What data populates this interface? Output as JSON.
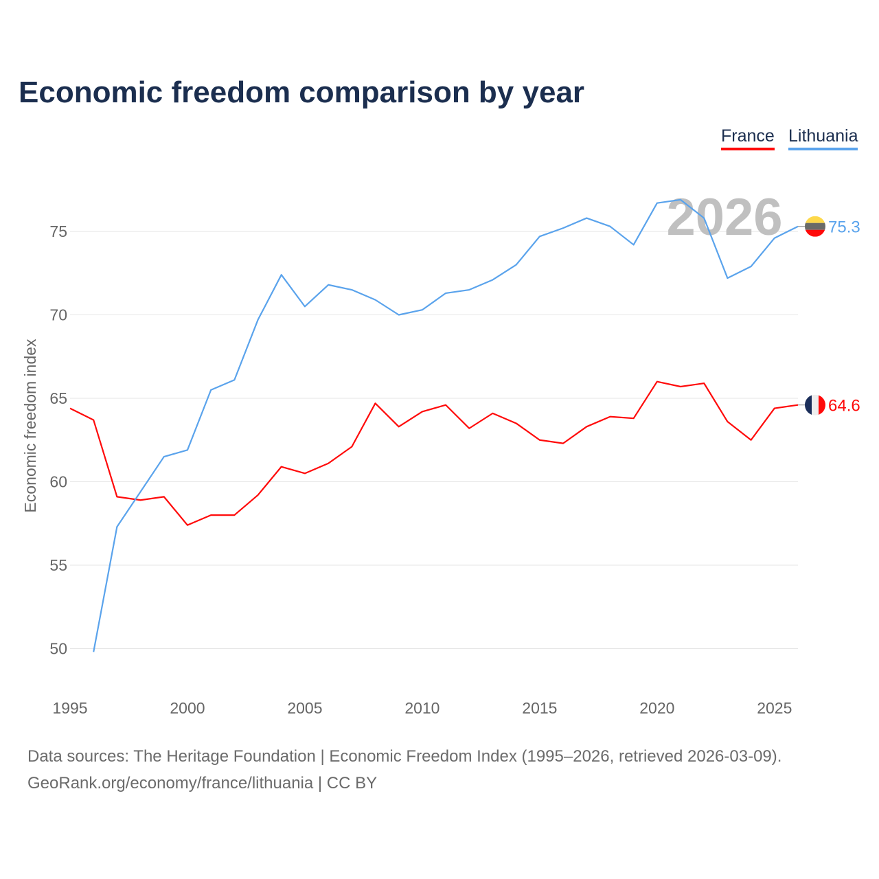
{
  "chart_data": {
    "type": "line",
    "title": "Economic freedom comparison by year",
    "xlabel": "",
    "ylabel": "Economic freedom index",
    "xlim": [
      1995,
      2026
    ],
    "ylim": [
      47.5,
      78
    ],
    "x_ticks": [
      1995,
      2000,
      2005,
      2010,
      2015,
      2020,
      2025
    ],
    "y_ticks": [
      50,
      55,
      60,
      65,
      70,
      75
    ],
    "grid": true,
    "legend_position": "top-right",
    "watermark_year": "2026",
    "series": [
      {
        "name": "France",
        "color": "#ff0a0a",
        "end_label": "64.6",
        "x": [
          1995,
          1996,
          1997,
          1998,
          1999,
          2000,
          2001,
          2002,
          2003,
          2004,
          2005,
          2006,
          2007,
          2008,
          2009,
          2010,
          2011,
          2012,
          2013,
          2014,
          2015,
          2016,
          2017,
          2018,
          2019,
          2020,
          2021,
          2022,
          2023,
          2024,
          2025,
          2026
        ],
        "values": [
          64.4,
          63.7,
          59.1,
          58.9,
          59.1,
          57.4,
          58.0,
          58.0,
          59.2,
          60.9,
          60.5,
          61.1,
          62.1,
          64.7,
          63.3,
          64.2,
          64.6,
          63.2,
          64.1,
          63.5,
          62.5,
          62.3,
          63.3,
          63.9,
          63.8,
          66.0,
          65.7,
          65.9,
          63.6,
          62.5,
          64.4,
          64.6
        ]
      },
      {
        "name": "Lithuania",
        "color": "#5aa3ec",
        "end_label": "75.3",
        "x": [
          1996,
          1997,
          1998,
          1999,
          2000,
          2001,
          2002,
          2003,
          2004,
          2005,
          2006,
          2007,
          2008,
          2009,
          2010,
          2011,
          2012,
          2013,
          2014,
          2015,
          2016,
          2017,
          2018,
          2019,
          2020,
          2021,
          2022,
          2023,
          2024,
          2025,
          2026
        ],
        "values": [
          49.8,
          57.3,
          59.4,
          61.5,
          61.9,
          65.5,
          66.1,
          69.7,
          72.4,
          70.5,
          71.8,
          71.5,
          70.9,
          70.0,
          70.3,
          71.3,
          71.5,
          72.1,
          73.0,
          74.7,
          75.2,
          75.8,
          75.3,
          74.2,
          76.7,
          76.9,
          75.8,
          72.2,
          72.9,
          74.6,
          75.3
        ]
      }
    ]
  },
  "footer": {
    "sources": "Data sources: The Heritage Foundation | Economic Freedom Index (1995–2026, retrieved 2026-03-09).",
    "attribution": "GeoRank.org/economy/france/lithuania | CC BY"
  }
}
